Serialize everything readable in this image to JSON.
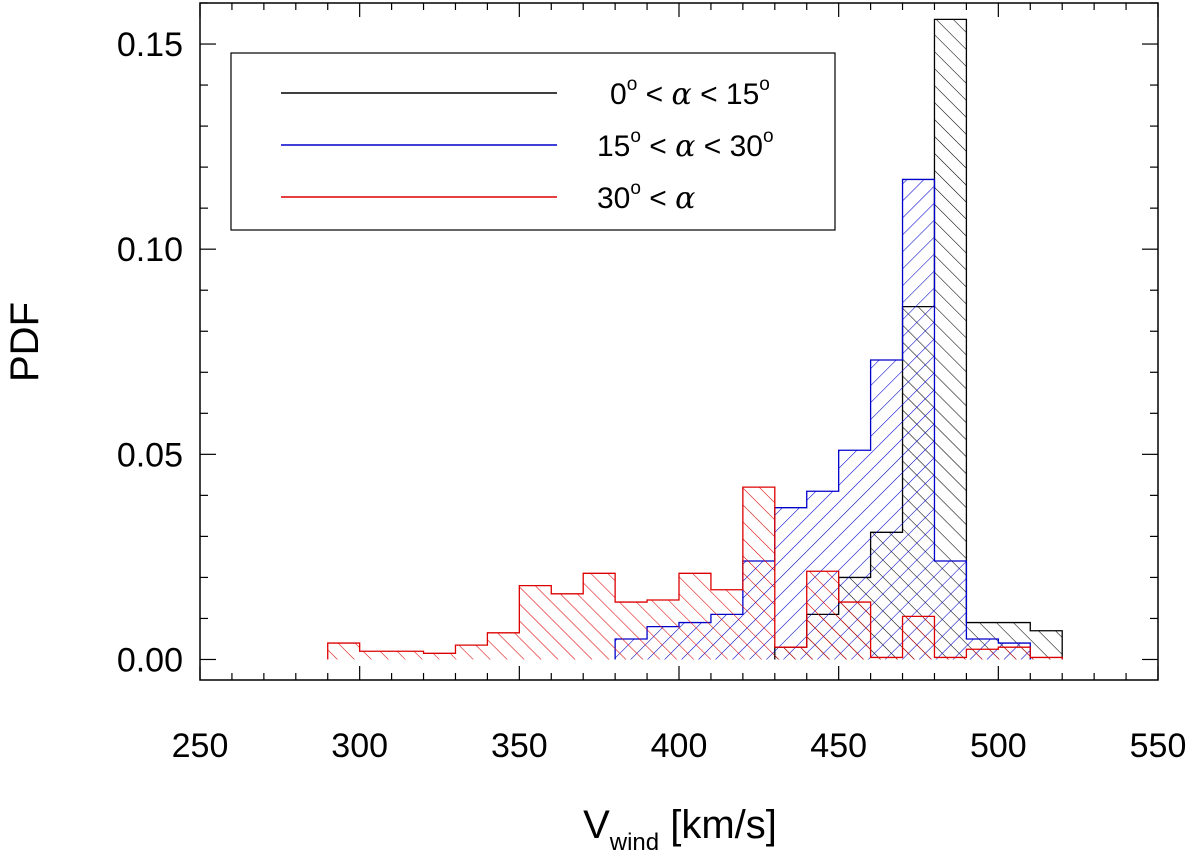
{
  "chart_data": {
    "type": "histogram",
    "xlabel": {
      "main": "V",
      "sub": "wind",
      "rest": " [km/s]"
    },
    "ylabel": "PDF",
    "xlim": [
      250,
      550
    ],
    "ylim": [
      -0.005,
      0.16
    ],
    "xticks": [
      250,
      300,
      350,
      400,
      450,
      500,
      550
    ],
    "xtick_labels": [
      "250",
      "300",
      "350",
      "400",
      "450",
      "500",
      "550"
    ],
    "yticks": [
      0.0,
      0.05,
      0.1,
      0.15
    ],
    "ytick_labels": [
      "0.00",
      "0.05",
      "0.10",
      "0.15"
    ],
    "bin_width": 10,
    "legend_position": "top-left",
    "legend_symbols": {
      "greek": "α",
      "deg": "o",
      "lt": "<"
    },
    "series": [
      {
        "name": "0° < α < 15°",
        "legend": {
          "a": "0",
          "b": "15"
        },
        "color": "#000000",
        "hatch": "diagonal-right",
        "bins": [
          {
            "x0": 430,
            "x1": 440,
            "y": 0.003
          },
          {
            "x0": 440,
            "x1": 450,
            "y": 0.011
          },
          {
            "x0": 450,
            "x1": 460,
            "y": 0.02
          },
          {
            "x0": 460,
            "x1": 470,
            "y": 0.031
          },
          {
            "x0": 470,
            "x1": 480,
            "y": 0.086
          },
          {
            "x0": 480,
            "x1": 490,
            "y": 0.156
          },
          {
            "x0": 490,
            "x1": 500,
            "y": 0.009
          },
          {
            "x0": 500,
            "x1": 510,
            "y": 0.009
          },
          {
            "x0": 510,
            "x1": 520,
            "y": 0.007
          }
        ]
      },
      {
        "name": "15° < α < 30°",
        "legend": {
          "a": "15",
          "b": "30"
        },
        "color": "#0000cc",
        "hatch": "diagonal-left",
        "bins": [
          {
            "x0": 380,
            "x1": 390,
            "y": 0.005
          },
          {
            "x0": 390,
            "x1": 400,
            "y": 0.008
          },
          {
            "x0": 400,
            "x1": 410,
            "y": 0.009
          },
          {
            "x0": 410,
            "x1": 420,
            "y": 0.011
          },
          {
            "x0": 420,
            "x1": 430,
            "y": 0.024
          },
          {
            "x0": 430,
            "x1": 440,
            "y": 0.037
          },
          {
            "x0": 440,
            "x1": 450,
            "y": 0.041
          },
          {
            "x0": 450,
            "x1": 460,
            "y": 0.051
          },
          {
            "x0": 460,
            "x1": 470,
            "y": 0.073
          },
          {
            "x0": 470,
            "x1": 480,
            "y": 0.117
          },
          {
            "x0": 480,
            "x1": 490,
            "y": 0.024
          },
          {
            "x0": 490,
            "x1": 500,
            "y": 0.005
          },
          {
            "x0": 500,
            "x1": 510,
            "y": 0.004
          }
        ]
      },
      {
        "name": "30° < α",
        "legend": {
          "a": "30",
          "b": ""
        },
        "color": "#dd0000",
        "hatch": "diagonal-right",
        "bins": [
          {
            "x0": 290,
            "x1": 300,
            "y": 0.004
          },
          {
            "x0": 300,
            "x1": 310,
            "y": 0.002
          },
          {
            "x0": 310,
            "x1": 320,
            "y": 0.002
          },
          {
            "x0": 320,
            "x1": 330,
            "y": 0.0015
          },
          {
            "x0": 330,
            "x1": 340,
            "y": 0.0035
          },
          {
            "x0": 340,
            "x1": 350,
            "y": 0.0065
          },
          {
            "x0": 350,
            "x1": 360,
            "y": 0.018
          },
          {
            "x0": 360,
            "x1": 370,
            "y": 0.016
          },
          {
            "x0": 370,
            "x1": 380,
            "y": 0.021
          },
          {
            "x0": 380,
            "x1": 390,
            "y": 0.014
          },
          {
            "x0": 390,
            "x1": 400,
            "y": 0.0145
          },
          {
            "x0": 400,
            "x1": 410,
            "y": 0.021
          },
          {
            "x0": 410,
            "x1": 420,
            "y": 0.017
          },
          {
            "x0": 420,
            "x1": 430,
            "y": 0.042
          },
          {
            "x0": 430,
            "x1": 440,
            "y": 0.003
          },
          {
            "x0": 440,
            "x1": 450,
            "y": 0.0215
          },
          {
            "x0": 450,
            "x1": 460,
            "y": 0.014
          },
          {
            "x0": 460,
            "x1": 470,
            "y": 0.0005
          },
          {
            "x0": 470,
            "x1": 480,
            "y": 0.0105
          },
          {
            "x0": 480,
            "x1": 490,
            "y": 0.0005
          },
          {
            "x0": 490,
            "x1": 500,
            "y": 0.0025
          },
          {
            "x0": 500,
            "x1": 510,
            "y": 0.003
          },
          {
            "x0": 510,
            "x1": 520,
            "y": 0.0005
          }
        ]
      }
    ]
  }
}
